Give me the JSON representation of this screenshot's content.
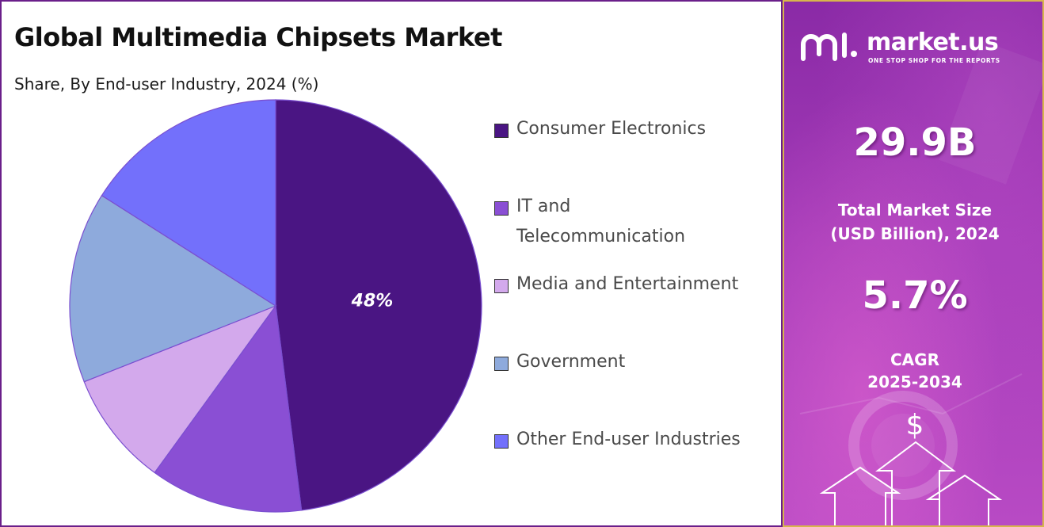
{
  "title": "Global Multimedia Chipsets Market",
  "subtitle": "Share, By End-user Industry, 2024 (%)",
  "chart_data": {
    "type": "pie",
    "title": "Global Multimedia Chipsets Market",
    "subtitle": "Share, By End-user Industry, 2024 (%)",
    "categories": [
      "Consumer Electronics",
      "IT and Telecommunication",
      "Media and Entertainment",
      "Government",
      "Other End-user Industries"
    ],
    "values": [
      48,
      12,
      9,
      15,
      16
    ],
    "colors": [
      "#4a1583",
      "#8a4fd4",
      "#d3a9ec",
      "#8eaadc",
      "#7370fb"
    ],
    "data_labels": [
      "48%",
      "",
      "",
      "",
      ""
    ],
    "legend_placement": "right"
  },
  "legend": {
    "items": [
      {
        "label": "Consumer Electronics"
      },
      {
        "label": "IT and Telecommunication"
      },
      {
        "label": "Media and Entertainment"
      },
      {
        "label": "Government"
      },
      {
        "label": "Other End-user Industries"
      }
    ]
  },
  "sidebar": {
    "brand_name": "market.us",
    "brand_tagline": "ONE STOP SHOP FOR THE REPORTS",
    "market_size_value": "29.9B",
    "market_size_label_line1": "Total Market Size",
    "market_size_label_line2": "(USD Billion), 2024",
    "cagr_value": "5.7%",
    "cagr_label_line1": "CAGR",
    "cagr_label_line2": "2025-2034",
    "currency_symbol": "$",
    "icons": [
      "market-us-logo-icon",
      "dollar-icon",
      "up-arrow-icon"
    ],
    "accent_color": "#a43bb8",
    "border_color": "#d7b54c"
  }
}
